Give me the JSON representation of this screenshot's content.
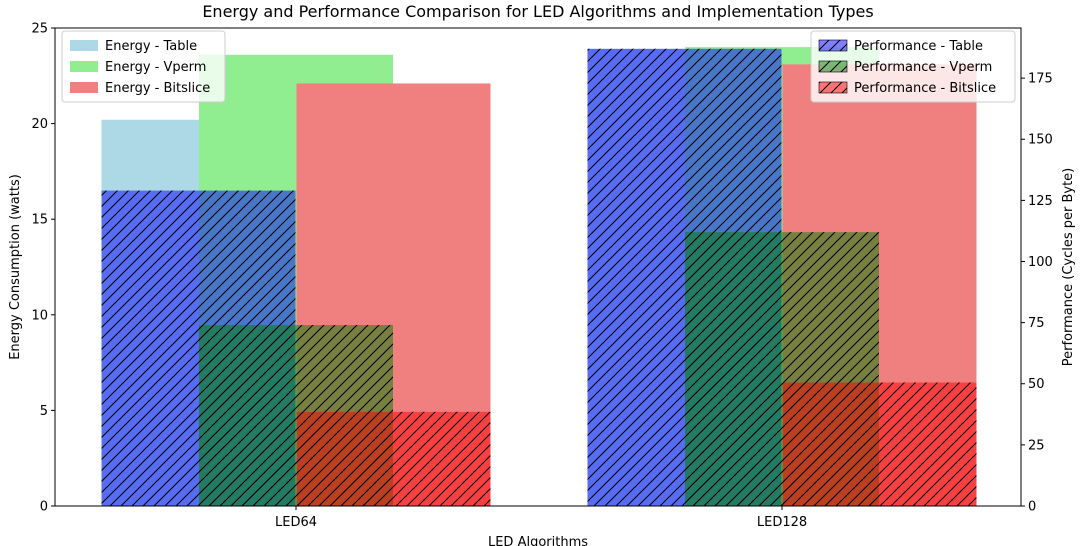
{
  "chart_data": {
    "type": "bar",
    "title": "Energy and Performance Comparison for LED Algorithms and Implementation Types",
    "xlabel": "LED Algorithms",
    "categories": [
      "LED64",
      "LED128"
    ],
    "left_axis": {
      "label": "Energy Consumption (watts)",
      "ylim": [
        0,
        25
      ],
      "ticks": [
        0,
        5,
        10,
        15,
        20,
        25
      ]
    },
    "right_axis": {
      "label": "Performance (Cycles per Byte)",
      "ylim": [
        0,
        195.5
      ],
      "ticks": [
        0,
        25,
        50,
        75,
        100,
        125,
        150,
        175
      ]
    },
    "energy_series": [
      {
        "name": "Energy - Table",
        "values": [
          20.2,
          23.9
        ],
        "color": "#add8e6"
      },
      {
        "name": "Energy - Vperm",
        "values": [
          23.6,
          24.0
        ],
        "color": "#90ee90"
      },
      {
        "name": "Energy - Bitslice",
        "values": [
          22.1,
          23.1
        ],
        "color": "#f08080"
      }
    ],
    "performance_series": [
      {
        "name": "Performance - Table",
        "values": [
          129,
          187
        ],
        "color": "#0000ff"
      },
      {
        "name": "Performance - Vperm",
        "values": [
          74,
          112
        ],
        "color": "#008000"
      },
      {
        "name": "Performance - Bitslice",
        "values": [
          38.5,
          50.5
        ],
        "color": "#ff0000"
      }
    ],
    "legend_left_position": "upper-left",
    "legend_right_position": "upper-right",
    "grid": false
  }
}
